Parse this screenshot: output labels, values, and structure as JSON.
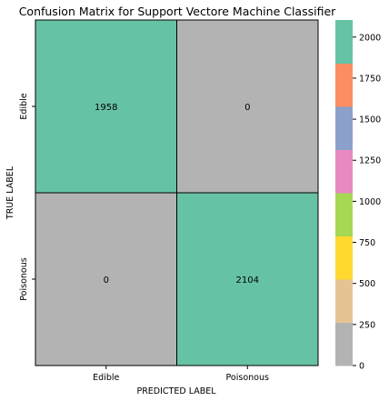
{
  "chart_data": {
    "type": "heatmap",
    "title": "Confusion Matrix for Support Vectore Machine Classifier",
    "xlabel": "PREDICTED LABEL",
    "ylabel": "TRUE LABEL",
    "x_categories": [
      "Edible",
      "Poisonous"
    ],
    "y_categories": [
      "Edible",
      "Poisonous"
    ],
    "values": [
      [
        1958,
        0
      ],
      [
        0,
        2104
      ]
    ],
    "cell_labels": [
      [
        "1958",
        "0"
      ],
      [
        "0",
        "2104"
      ]
    ],
    "colorbar": {
      "range": [
        0,
        2104
      ],
      "ticks": [
        0,
        250,
        500,
        750,
        1000,
        1250,
        1500,
        1750,
        2000
      ],
      "tick_labels": [
        "0",
        "250",
        "500",
        "750",
        "1000",
        "1250",
        "1500",
        "1750",
        "2000"
      ],
      "palette": [
        "#b3b3b3",
        "#e5c494",
        "#ffd92f",
        "#a6d854",
        "#e78ac3",
        "#8da0cb",
        "#fc8d62",
        "#66c2a5"
      ],
      "colormap": "Set2 (reversed)"
    },
    "grid": true,
    "legend": "right colorbar"
  }
}
